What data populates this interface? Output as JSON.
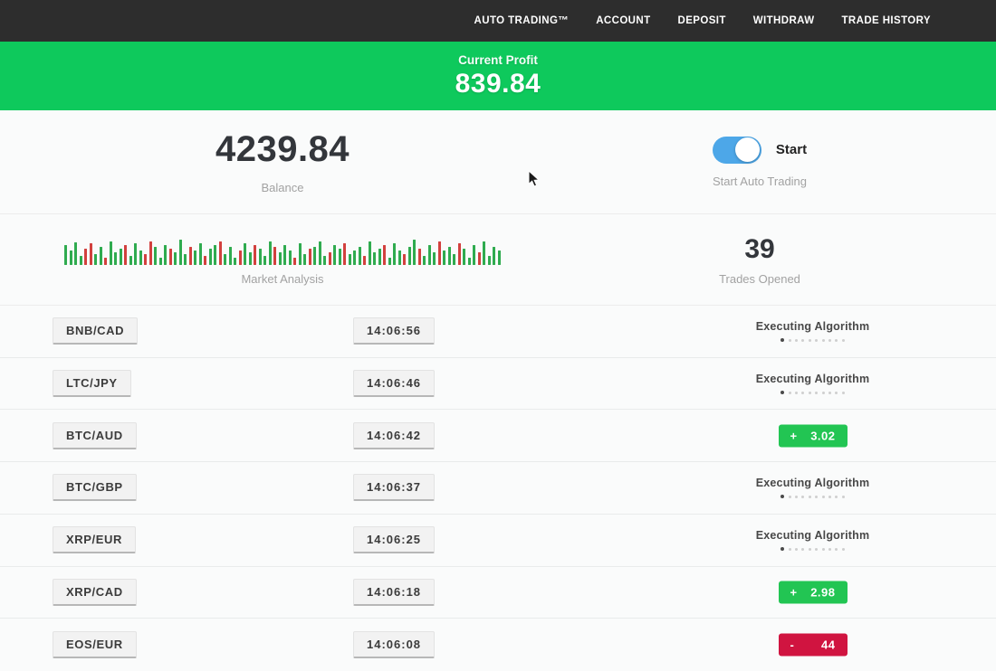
{
  "nav": {
    "items": [
      "AUTO TRADING™",
      "ACCOUNT",
      "DEPOSIT",
      "WITHDRAW",
      "TRADE HISTORY"
    ]
  },
  "profit_banner": {
    "label": "Current Profit",
    "value": "839.84"
  },
  "stats": {
    "balance": {
      "value": "4239.84",
      "label": "Balance"
    },
    "auto_trading": {
      "toggle_label": "Start",
      "label": "Start Auto Trading",
      "enabled": true
    },
    "market_analysis": {
      "label": "Market Analysis"
    },
    "trades_opened": {
      "value": "39",
      "label": "Trades Opened"
    }
  },
  "colors": {
    "nav_bg": "#2d2d2d",
    "banner_green": "#0ec95c",
    "badge_green": "#22c553",
    "badge_red": "#d01440",
    "toggle_blue": "#4da7e8"
  },
  "chart_data": {
    "type": "bar",
    "title": "Market Analysis",
    "note": "decorative candlestick-style mini chart, green/red bars, heights in px",
    "bars": [
      [
        22,
        "g"
      ],
      [
        16,
        "g"
      ],
      [
        25,
        "g"
      ],
      [
        10,
        "g"
      ],
      [
        18,
        "r"
      ],
      [
        24,
        "r"
      ],
      [
        12,
        "g"
      ],
      [
        20,
        "g"
      ],
      [
        8,
        "r"
      ],
      [
        26,
        "g"
      ],
      [
        14,
        "g"
      ],
      [
        18,
        "g"
      ],
      [
        22,
        "r"
      ],
      [
        10,
        "g"
      ],
      [
        24,
        "g"
      ],
      [
        16,
        "g"
      ],
      [
        12,
        "r"
      ],
      [
        26,
        "r"
      ],
      [
        20,
        "g"
      ],
      [
        8,
        "g"
      ],
      [
        22,
        "g"
      ],
      [
        18,
        "r"
      ],
      [
        14,
        "g"
      ],
      [
        28,
        "g"
      ],
      [
        12,
        "g"
      ],
      [
        20,
        "r"
      ],
      [
        16,
        "g"
      ],
      [
        24,
        "g"
      ],
      [
        10,
        "r"
      ],
      [
        18,
        "g"
      ],
      [
        22,
        "g"
      ],
      [
        26,
        "r"
      ],
      [
        12,
        "g"
      ],
      [
        20,
        "g"
      ],
      [
        8,
        "g"
      ],
      [
        16,
        "r"
      ],
      [
        24,
        "g"
      ],
      [
        14,
        "g"
      ],
      [
        22,
        "r"
      ],
      [
        18,
        "g"
      ],
      [
        10,
        "g"
      ],
      [
        26,
        "g"
      ],
      [
        20,
        "r"
      ],
      [
        14,
        "g"
      ],
      [
        22,
        "g"
      ],
      [
        16,
        "g"
      ],
      [
        8,
        "r"
      ],
      [
        24,
        "g"
      ],
      [
        12,
        "g"
      ],
      [
        18,
        "r"
      ],
      [
        20,
        "g"
      ],
      [
        26,
        "g"
      ],
      [
        10,
        "g"
      ],
      [
        14,
        "r"
      ],
      [
        22,
        "g"
      ],
      [
        18,
        "g"
      ],
      [
        24,
        "r"
      ],
      [
        12,
        "g"
      ],
      [
        16,
        "g"
      ],
      [
        20,
        "g"
      ],
      [
        10,
        "r"
      ],
      [
        26,
        "g"
      ],
      [
        14,
        "g"
      ],
      [
        18,
        "g"
      ],
      [
        22,
        "r"
      ],
      [
        8,
        "g"
      ],
      [
        24,
        "g"
      ],
      [
        16,
        "g"
      ],
      [
        12,
        "r"
      ],
      [
        20,
        "g"
      ],
      [
        28,
        "g"
      ],
      [
        18,
        "r"
      ],
      [
        10,
        "g"
      ],
      [
        22,
        "g"
      ],
      [
        14,
        "g"
      ],
      [
        26,
        "r"
      ],
      [
        16,
        "g"
      ],
      [
        20,
        "g"
      ],
      [
        12,
        "g"
      ],
      [
        24,
        "r"
      ],
      [
        18,
        "g"
      ],
      [
        8,
        "g"
      ],
      [
        22,
        "g"
      ],
      [
        14,
        "r"
      ],
      [
        26,
        "g"
      ],
      [
        10,
        "g"
      ],
      [
        20,
        "g"
      ],
      [
        16,
        "g"
      ]
    ]
  },
  "trades": [
    {
      "pair": "BNB/CAD",
      "time": "14:06:56",
      "status": "executing",
      "status_label": "Executing Algorithm",
      "dots": 10
    },
    {
      "pair": "LTC/JPY",
      "time": "14:06:46",
      "status": "executing",
      "status_label": "Executing Algorithm",
      "dots": 10
    },
    {
      "pair": "BTC/AUD",
      "time": "14:06:42",
      "status": "profit",
      "sign": "+",
      "amount": "3.02"
    },
    {
      "pair": "BTC/GBP",
      "time": "14:06:37",
      "status": "executing",
      "status_label": "Executing Algorithm",
      "dots": 10
    },
    {
      "pair": "XRP/EUR",
      "time": "14:06:25",
      "status": "executing",
      "status_label": "Executing Algorithm",
      "dots": 10
    },
    {
      "pair": "XRP/CAD",
      "time": "14:06:18",
      "status": "profit",
      "sign": "+",
      "amount": "2.98"
    },
    {
      "pair": "EOS/EUR",
      "time": "14:06:08",
      "status": "loss",
      "sign": "-",
      "amount": "44"
    }
  ]
}
